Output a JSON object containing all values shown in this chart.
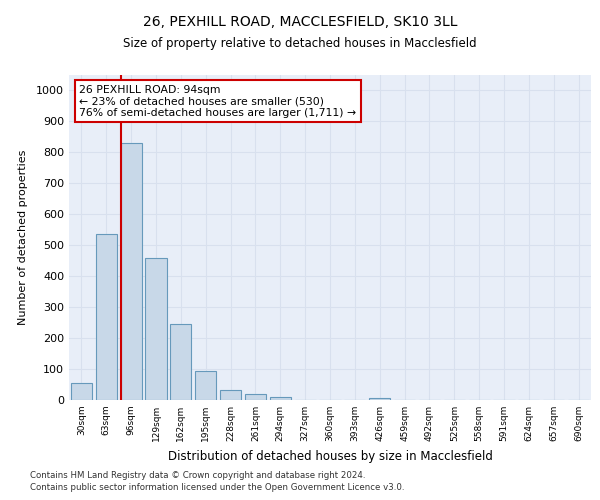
{
  "title_line1": "26, PEXHILL ROAD, MACCLESFIELD, SK10 3LL",
  "title_line2": "Size of property relative to detached houses in Macclesfield",
  "xlabel": "Distribution of detached houses by size in Macclesfield",
  "ylabel": "Number of detached properties",
  "categories": [
    "30sqm",
    "63sqm",
    "96sqm",
    "129sqm",
    "162sqm",
    "195sqm",
    "228sqm",
    "261sqm",
    "294sqm",
    "327sqm",
    "360sqm",
    "393sqm",
    "426sqm",
    "459sqm",
    "492sqm",
    "525sqm",
    "558sqm",
    "591sqm",
    "624sqm",
    "657sqm",
    "690sqm"
  ],
  "values": [
    55,
    535,
    830,
    460,
    245,
    95,
    33,
    20,
    10,
    0,
    0,
    0,
    8,
    0,
    0,
    0,
    0,
    0,
    0,
    0,
    0
  ],
  "bar_color": "#c8d8e8",
  "bar_edge_color": "#6699bb",
  "annotation_line1": "26 PEXHILL ROAD: 94sqm",
  "annotation_line2": "← 23% of detached houses are smaller (530)",
  "annotation_line3": "76% of semi-detached houses are larger (1,711) →",
  "annotation_box_facecolor": "#ffffff",
  "annotation_box_edgecolor": "#cc0000",
  "vline_color": "#cc0000",
  "vline_x_index": 2,
  "ylim": [
    0,
    1050
  ],
  "yticks": [
    0,
    100,
    200,
    300,
    400,
    500,
    600,
    700,
    800,
    900,
    1000
  ],
  "grid_color": "#d8e0ee",
  "bg_color": "#e8eef8",
  "footnote1": "Contains HM Land Registry data © Crown copyright and database right 2024.",
  "footnote2": "Contains public sector information licensed under the Open Government Licence v3.0."
}
